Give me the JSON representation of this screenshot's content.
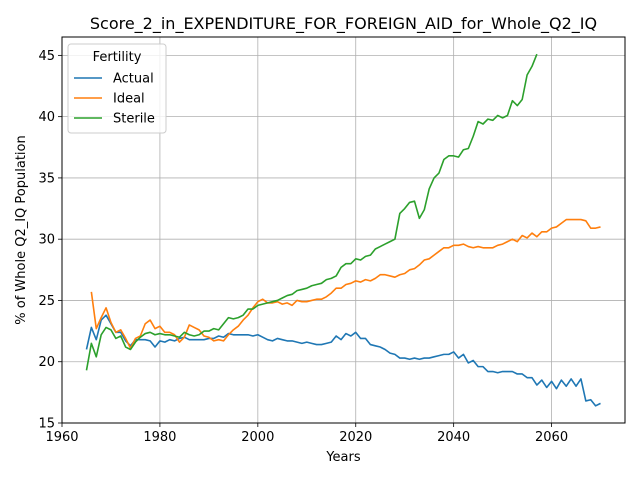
{
  "chart_data": {
    "type": "line",
    "title": "Score_2_in_EXPENDITURE_FOR_FOREIGN_AID_for_Whole_Q2_IQ",
    "xlabel": "Years",
    "ylabel": "% of Whole Q2_IQ Population",
    "xlim": [
      1960,
      2075
    ],
    "ylim": [
      15,
      46.5
    ],
    "x_ticks": [
      1960,
      1980,
      2000,
      2020,
      2040,
      2060
    ],
    "x_tick_labels": [
      "1960",
      "1980",
      "2000",
      "2020",
      "2040",
      "2060"
    ],
    "y_ticks": [
      15,
      20,
      25,
      30,
      35,
      40,
      45
    ],
    "y_tick_labels": [
      "15",
      "20",
      "25",
      "30",
      "35",
      "40",
      "45"
    ],
    "grid": true,
    "legend": {
      "title": "Fertility",
      "position": "top-left"
    },
    "series": [
      {
        "name": "Actual",
        "color": "#1f77b4",
        "points": [
          [
            1965,
            21.0
          ],
          [
            1966,
            22.8
          ],
          [
            1967,
            21.8
          ],
          [
            1968,
            23.4
          ],
          [
            1969,
            23.8
          ],
          [
            1970,
            23.1
          ],
          [
            1971,
            22.4
          ],
          [
            1972,
            22.4
          ],
          [
            1973,
            21.7
          ],
          [
            1974,
            21.3
          ],
          [
            1975,
            21.8
          ],
          [
            1976,
            21.8
          ],
          [
            1977,
            21.8
          ],
          [
            1978,
            21.7
          ],
          [
            1979,
            21.2
          ],
          [
            1980,
            21.7
          ],
          [
            1981,
            21.6
          ],
          [
            1982,
            21.8
          ],
          [
            1983,
            21.7
          ],
          [
            1984,
            21.9
          ],
          [
            1985,
            22.0
          ],
          [
            1986,
            21.8
          ],
          [
            1987,
            21.8
          ],
          [
            1988,
            21.8
          ],
          [
            1989,
            21.8
          ],
          [
            1990,
            21.9
          ],
          [
            1991,
            21.9
          ],
          [
            1992,
            22.1
          ],
          [
            1993,
            22.0
          ],
          [
            1994,
            22.3
          ],
          [
            1995,
            22.2
          ],
          [
            1996,
            22.2
          ],
          [
            1997,
            22.2
          ],
          [
            1998,
            22.2
          ],
          [
            1999,
            22.1
          ],
          [
            2000,
            22.2
          ],
          [
            2001,
            22.0
          ],
          [
            2002,
            21.8
          ],
          [
            2003,
            21.7
          ],
          [
            2004,
            21.9
          ],
          [
            2005,
            21.8
          ],
          [
            2006,
            21.7
          ],
          [
            2007,
            21.7
          ],
          [
            2008,
            21.6
          ],
          [
            2009,
            21.5
          ],
          [
            2010,
            21.6
          ],
          [
            2011,
            21.5
          ],
          [
            2012,
            21.4
          ],
          [
            2013,
            21.4
          ],
          [
            2014,
            21.5
          ],
          [
            2015,
            21.6
          ],
          [
            2016,
            22.1
          ],
          [
            2017,
            21.8
          ],
          [
            2018,
            22.3
          ],
          [
            2019,
            22.1
          ],
          [
            2020,
            22.4
          ],
          [
            2021,
            21.9
          ],
          [
            2022,
            21.9
          ],
          [
            2023,
            21.4
          ],
          [
            2024,
            21.3
          ],
          [
            2025,
            21.2
          ],
          [
            2026,
            21.0
          ],
          [
            2027,
            20.7
          ],
          [
            2028,
            20.6
          ],
          [
            2029,
            20.3
          ],
          [
            2030,
            20.3
          ],
          [
            2031,
            20.2
          ],
          [
            2032,
            20.3
          ],
          [
            2033,
            20.2
          ],
          [
            2034,
            20.3
          ],
          [
            2035,
            20.3
          ],
          [
            2036,
            20.4
          ],
          [
            2037,
            20.5
          ],
          [
            2038,
            20.6
          ],
          [
            2039,
            20.6
          ],
          [
            2040,
            20.8
          ],
          [
            2041,
            20.3
          ],
          [
            2042,
            20.6
          ],
          [
            2043,
            19.9
          ],
          [
            2044,
            20.1
          ],
          [
            2045,
            19.6
          ],
          [
            2046,
            19.6
          ],
          [
            2047,
            19.2
          ],
          [
            2048,
            19.2
          ],
          [
            2049,
            19.1
          ],
          [
            2050,
            19.2
          ],
          [
            2051,
            19.2
          ],
          [
            2052,
            19.2
          ],
          [
            2053,
            19.0
          ],
          [
            2054,
            19.0
          ],
          [
            2055,
            18.7
          ],
          [
            2056,
            18.7
          ],
          [
            2057,
            18.1
          ],
          [
            2058,
            18.5
          ],
          [
            2059,
            17.9
          ],
          [
            2060,
            18.4
          ],
          [
            2061,
            17.8
          ],
          [
            2062,
            18.5
          ],
          [
            2063,
            18.0
          ],
          [
            2064,
            18.6
          ],
          [
            2065,
            18.0
          ],
          [
            2066,
            18.6
          ],
          [
            2067,
            16.8
          ],
          [
            2068,
            16.9
          ],
          [
            2069,
            16.4
          ],
          [
            2070,
            16.6
          ]
        ]
      },
      {
        "name": "Ideal",
        "color": "#ff7f0e",
        "points": [
          [
            1966,
            25.7
          ],
          [
            1967,
            22.7
          ],
          [
            1968,
            23.6
          ],
          [
            1969,
            24.4
          ],
          [
            1970,
            23.2
          ],
          [
            1971,
            22.4
          ],
          [
            1972,
            22.6
          ],
          [
            1973,
            21.9
          ],
          [
            1974,
            21.1
          ],
          [
            1975,
            21.9
          ],
          [
            1976,
            22.1
          ],
          [
            1977,
            23.1
          ],
          [
            1978,
            23.4
          ],
          [
            1979,
            22.7
          ],
          [
            1980,
            22.9
          ],
          [
            1981,
            22.4
          ],
          [
            1982,
            22.4
          ],
          [
            1983,
            22.2
          ],
          [
            1984,
            21.6
          ],
          [
            1985,
            22.0
          ],
          [
            1986,
            23.0
          ],
          [
            1987,
            22.8
          ],
          [
            1988,
            22.6
          ],
          [
            1989,
            22.1
          ],
          [
            1990,
            22.0
          ],
          [
            1991,
            21.7
          ],
          [
            1992,
            21.8
          ],
          [
            1993,
            21.7
          ],
          [
            1994,
            22.2
          ],
          [
            1995,
            22.6
          ],
          [
            1996,
            22.9
          ],
          [
            1997,
            23.4
          ],
          [
            1998,
            23.8
          ],
          [
            1999,
            24.4
          ],
          [
            2000,
            24.9
          ],
          [
            2001,
            25.1
          ],
          [
            2002,
            24.8
          ],
          [
            2003,
            24.8
          ],
          [
            2004,
            24.9
          ],
          [
            2005,
            24.7
          ],
          [
            2006,
            24.8
          ],
          [
            2007,
            24.6
          ],
          [
            2008,
            25.0
          ],
          [
            2009,
            24.9
          ],
          [
            2010,
            24.9
          ],
          [
            2011,
            25.0
          ],
          [
            2012,
            25.1
          ],
          [
            2013,
            25.1
          ],
          [
            2014,
            25.3
          ],
          [
            2015,
            25.6
          ],
          [
            2016,
            26.0
          ],
          [
            2017,
            26.0
          ],
          [
            2018,
            26.3
          ],
          [
            2019,
            26.4
          ],
          [
            2020,
            26.6
          ],
          [
            2021,
            26.5
          ],
          [
            2022,
            26.7
          ],
          [
            2023,
            26.6
          ],
          [
            2024,
            26.8
          ],
          [
            2025,
            27.1
          ],
          [
            2026,
            27.1
          ],
          [
            2027,
            27.0
          ],
          [
            2028,
            26.9
          ],
          [
            2029,
            27.1
          ],
          [
            2030,
            27.2
          ],
          [
            2031,
            27.5
          ],
          [
            2032,
            27.6
          ],
          [
            2033,
            27.9
          ],
          [
            2034,
            28.3
          ],
          [
            2035,
            28.4
          ],
          [
            2036,
            28.7
          ],
          [
            2037,
            29.0
          ],
          [
            2038,
            29.3
          ],
          [
            2039,
            29.3
          ],
          [
            2040,
            29.5
          ],
          [
            2041,
            29.5
          ],
          [
            2042,
            29.6
          ],
          [
            2043,
            29.4
          ],
          [
            2044,
            29.3
          ],
          [
            2045,
            29.4
          ],
          [
            2046,
            29.3
          ],
          [
            2047,
            29.3
          ],
          [
            2048,
            29.3
          ],
          [
            2049,
            29.5
          ],
          [
            2050,
            29.6
          ],
          [
            2051,
            29.8
          ],
          [
            2052,
            30.0
          ],
          [
            2053,
            29.8
          ],
          [
            2054,
            30.3
          ],
          [
            2055,
            30.1
          ],
          [
            2056,
            30.5
          ],
          [
            2057,
            30.2
          ],
          [
            2058,
            30.6
          ],
          [
            2059,
            30.6
          ],
          [
            2060,
            30.9
          ],
          [
            2061,
            31.0
          ],
          [
            2062,
            31.3
          ],
          [
            2063,
            31.6
          ],
          [
            2064,
            31.6
          ],
          [
            2065,
            31.6
          ],
          [
            2066,
            31.6
          ],
          [
            2067,
            31.5
          ],
          [
            2068,
            30.9
          ],
          [
            2069,
            30.9
          ],
          [
            2070,
            31.0
          ]
        ]
      },
      {
        "name": "Sterile",
        "color": "#2ca02c",
        "points": [
          [
            1965,
            19.3
          ],
          [
            1966,
            21.5
          ],
          [
            1967,
            20.4
          ],
          [
            1968,
            22.2
          ],
          [
            1969,
            22.8
          ],
          [
            1970,
            22.6
          ],
          [
            1971,
            21.9
          ],
          [
            1972,
            22.1
          ],
          [
            1973,
            21.2
          ],
          [
            1974,
            21.0
          ],
          [
            1975,
            21.6
          ],
          [
            1976,
            22.0
          ],
          [
            1977,
            22.3
          ],
          [
            1978,
            22.4
          ],
          [
            1979,
            22.2
          ],
          [
            1980,
            22.3
          ],
          [
            1981,
            22.2
          ],
          [
            1982,
            22.2
          ],
          [
            1983,
            22.1
          ],
          [
            1984,
            22.0
          ],
          [
            1985,
            22.4
          ],
          [
            1986,
            22.2
          ],
          [
            1987,
            22.1
          ],
          [
            1988,
            22.2
          ],
          [
            1989,
            22.5
          ],
          [
            1990,
            22.5
          ],
          [
            1991,
            22.7
          ],
          [
            1992,
            22.6
          ],
          [
            1993,
            23.1
          ],
          [
            1994,
            23.6
          ],
          [
            1995,
            23.5
          ],
          [
            1996,
            23.6
          ],
          [
            1997,
            23.8
          ],
          [
            1998,
            24.3
          ],
          [
            1999,
            24.3
          ],
          [
            2000,
            24.6
          ],
          [
            2001,
            24.7
          ],
          [
            2002,
            24.8
          ],
          [
            2003,
            24.9
          ],
          [
            2004,
            25.0
          ],
          [
            2005,
            25.2
          ],
          [
            2006,
            25.4
          ],
          [
            2007,
            25.5
          ],
          [
            2008,
            25.8
          ],
          [
            2009,
            25.9
          ],
          [
            2010,
            26.0
          ],
          [
            2011,
            26.2
          ],
          [
            2012,
            26.3
          ],
          [
            2013,
            26.4
          ],
          [
            2014,
            26.7
          ],
          [
            2015,
            26.8
          ],
          [
            2016,
            27.0
          ],
          [
            2017,
            27.7
          ],
          [
            2018,
            28.0
          ],
          [
            2019,
            28.0
          ],
          [
            2020,
            28.4
          ],
          [
            2021,
            28.3
          ],
          [
            2022,
            28.6
          ],
          [
            2023,
            28.7
          ],
          [
            2024,
            29.2
          ],
          [
            2025,
            29.4
          ],
          [
            2026,
            29.6
          ],
          [
            2027,
            29.8
          ],
          [
            2028,
            30.0
          ],
          [
            2029,
            32.1
          ],
          [
            2030,
            32.5
          ],
          [
            2031,
            33.0
          ],
          [
            2032,
            33.1
          ],
          [
            2033,
            31.7
          ],
          [
            2034,
            32.4
          ],
          [
            2035,
            34.1
          ],
          [
            2036,
            35.0
          ],
          [
            2037,
            35.4
          ],
          [
            2038,
            36.5
          ],
          [
            2039,
            36.8
          ],
          [
            2040,
            36.8
          ],
          [
            2041,
            36.7
          ],
          [
            2042,
            37.3
          ],
          [
            2043,
            37.4
          ],
          [
            2044,
            38.4
          ],
          [
            2045,
            39.6
          ],
          [
            2046,
            39.4
          ],
          [
            2047,
            39.8
          ],
          [
            2048,
            39.7
          ],
          [
            2049,
            40.1
          ],
          [
            2050,
            39.9
          ],
          [
            2051,
            40.1
          ],
          [
            2052,
            41.3
          ],
          [
            2053,
            40.9
          ],
          [
            2054,
            41.4
          ],
          [
            2055,
            43.4
          ],
          [
            2056,
            44.1
          ],
          [
            2057,
            45.1
          ]
        ]
      }
    ]
  }
}
